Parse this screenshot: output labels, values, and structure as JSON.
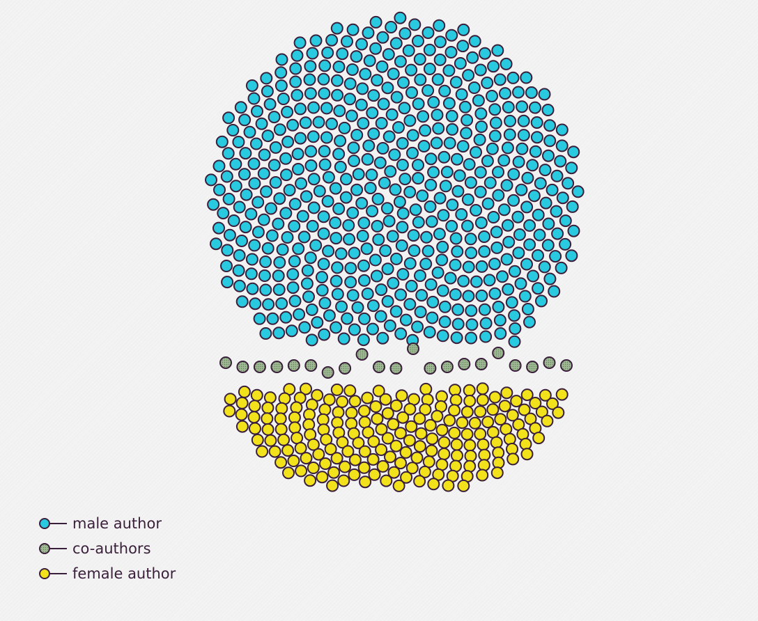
{
  "chart_data": {
    "type": "scatter",
    "title": "",
    "series": [
      {
        "name": "male author",
        "count": 530,
        "color": "#29c9e0",
        "pattern": "solid"
      },
      {
        "name": "co-authors",
        "count": 21,
        "color": "#9fb893",
        "pattern": "dotted"
      },
      {
        "name": "female author",
        "count": 195,
        "color": "#f2e21c",
        "pattern": "solid"
      }
    ],
    "stroke_color": "#3a1f3b",
    "grid": false,
    "legend": "bottom-left"
  }
}
